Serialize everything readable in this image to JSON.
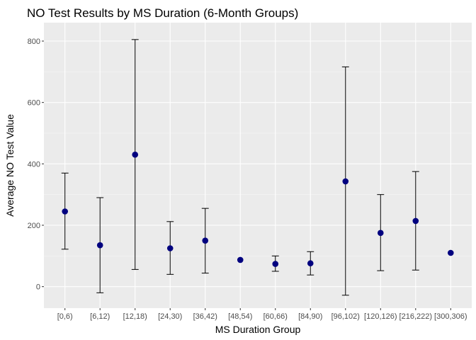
{
  "chart_data": {
    "type": "scatter",
    "title": "NO Test Results by MS Duration (6-Month Groups)",
    "xlabel": "MS Duration Group",
    "ylabel": "Average NO Test Value",
    "ylim": [
      -70,
      860
    ],
    "yticks": [
      0,
      200,
      400,
      600,
      800
    ],
    "grid": true,
    "legend": "none",
    "categories": [
      "[0,6)",
      "[6,12)",
      "[12,18)",
      "[24,30)",
      "[36,42)",
      "[48,54)",
      "[60,66)",
      "[84,90)",
      "[96,102)",
      "[120,126)",
      "[216,222)",
      "[300,306)"
    ],
    "series": [
      {
        "mean": [
          245,
          135,
          430,
          125,
          150,
          87,
          74,
          76,
          343,
          175,
          214,
          110
        ],
        "lower": [
          122,
          -20,
          56,
          40,
          44,
          null,
          50,
          38,
          -28,
          52,
          54,
          null
        ],
        "upper": [
          370,
          290,
          805,
          212,
          255,
          null,
          100,
          114,
          716,
          300,
          375,
          null
        ]
      }
    ],
    "colors": {
      "panel": "#ebebeb",
      "grid_major": "#ffffff",
      "grid_minor": "#f5f5f5",
      "point": "#00007f",
      "errorbar": "#000000",
      "tick_text": "#4d4d4d",
      "tick_mark": "#333333"
    }
  }
}
